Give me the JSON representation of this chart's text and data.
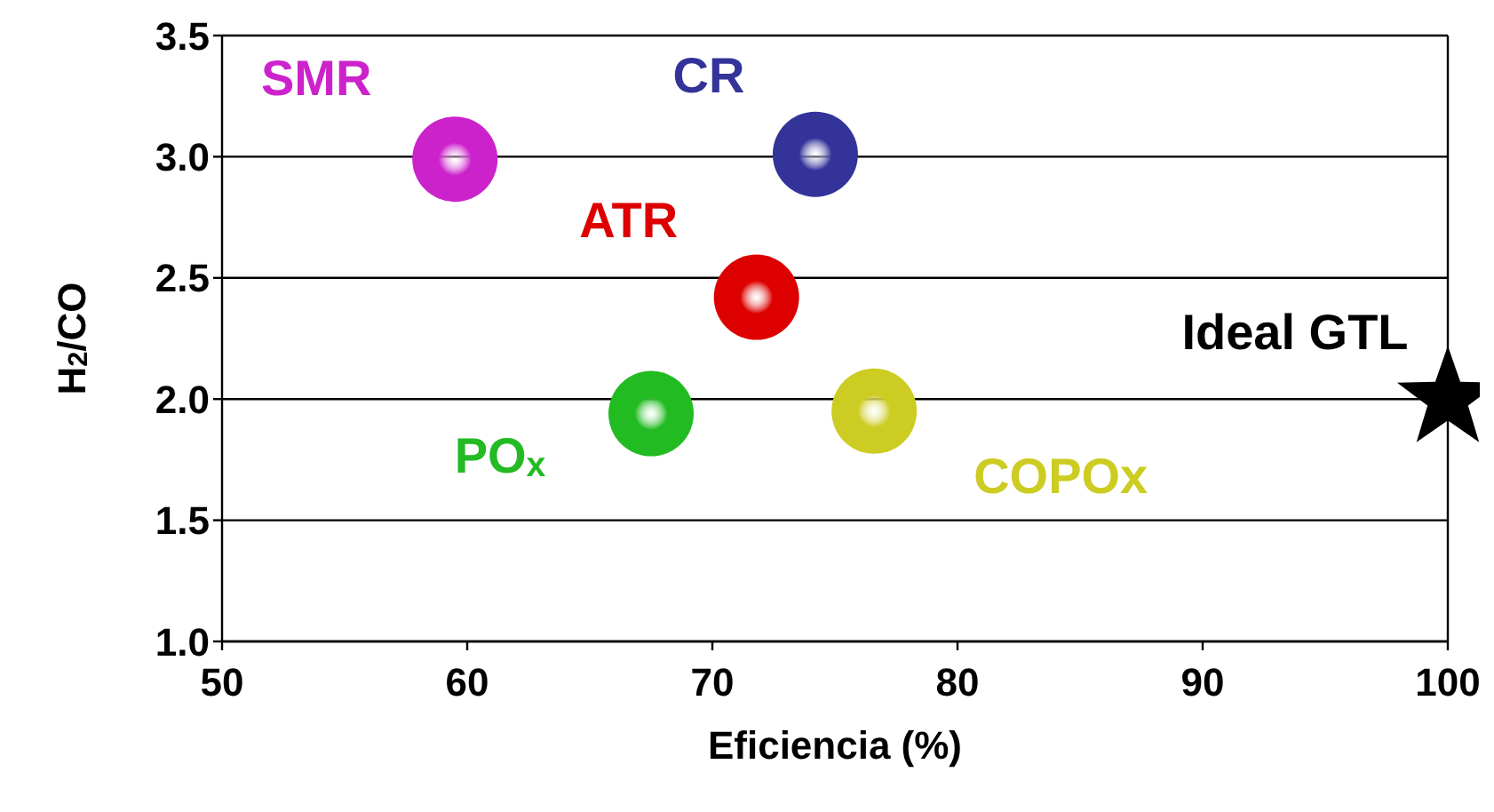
{
  "chart_data": {
    "type": "scatter",
    "xlabel": "Eficiencia (%)",
    "ylabel": "H$_{2}$/CO",
    "xlim": [
      50,
      100
    ],
    "xticks": [
      50,
      60,
      70,
      80,
      90,
      100
    ],
    "ylim": [
      1.0,
      3.5
    ],
    "yticks": [
      {
        "value": 1.0,
        "label": "1.0"
      },
      {
        "value": 1.5,
        "label": "1.5"
      },
      {
        "value": 2.0,
        "label": "2.0"
      },
      {
        "value": 2.5,
        "label": "2.5"
      },
      {
        "value": 3.0,
        "label": "3.0"
      },
      {
        "value": 3.5,
        "label": "3.5"
      }
    ],
    "grid": "y",
    "legend": false,
    "series": [
      {
        "name": "SMR",
        "color": "#cc22cc",
        "x": [
          59.5
        ],
        "values": [
          2.99
        ],
        "marker": "circle"
      },
      {
        "name": "CR",
        "color": "#333399",
        "x": [
          74.2
        ],
        "values": [
          3.01
        ],
        "marker": "circle"
      },
      {
        "name": "ATR",
        "color": "#dd0000",
        "x": [
          71.8
        ],
        "values": [
          2.42
        ],
        "marker": "circle"
      },
      {
        "name": "PO$_{x}$",
        "color": "#22bb22",
        "x": [
          67.5
        ],
        "values": [
          1.94
        ],
        "marker": "circle"
      },
      {
        "name": "COPOx",
        "color": "#cccc22",
        "x": [
          76.6
        ],
        "values": [
          1.95
        ],
        "marker": "circle"
      },
      {
        "name": "Ideal GTL",
        "color": "#000000",
        "x": [
          100
        ],
        "values": [
          2.0
        ],
        "marker": "star"
      }
    ]
  }
}
